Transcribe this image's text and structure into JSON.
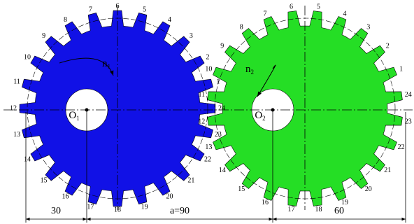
{
  "gears": [
    {
      "tooth_labels": [
        1,
        2,
        3,
        4,
        5,
        6,
        7,
        8,
        9,
        10,
        11,
        12,
        13,
        14,
        15,
        16,
        17,
        18,
        19,
        20,
        21,
        22,
        23,
        24
      ],
      "speed_label": {
        "main": "n",
        "sub": "1"
      },
      "center_label": {
        "main": "O",
        "sub": "1"
      }
    },
    {
      "tooth_labels": [
        1,
        2,
        3,
        4,
        5,
        6,
        7,
        8,
        9,
        10,
        11,
        12,
        13,
        14,
        15,
        16,
        17,
        18,
        19,
        20,
        21,
        22,
        23,
        24
      ],
      "speed_label": {
        "main": "n",
        "sub": "2"
      },
      "center_label": {
        "main": "O",
        "sub": "2"
      }
    }
  ],
  "dimensions": [
    "30",
    "a=90",
    "60"
  ]
}
